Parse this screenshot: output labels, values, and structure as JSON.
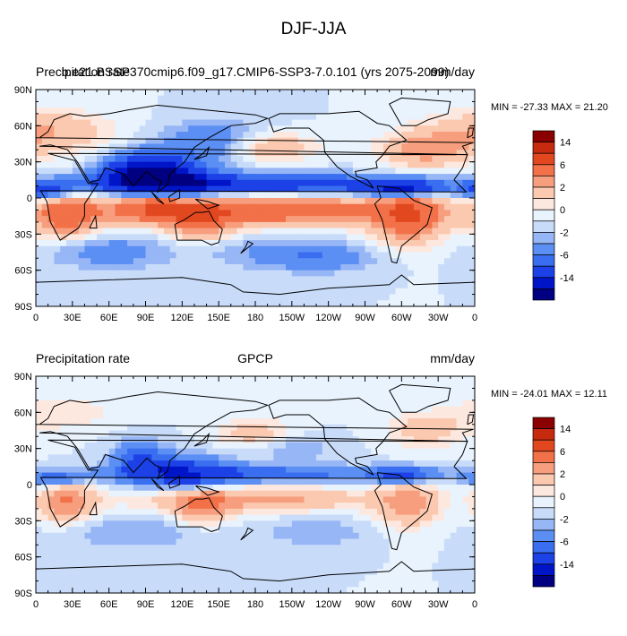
{
  "title": "DJF-JJA",
  "colors": {
    "levels": [
      -14,
      -10,
      -6,
      -4,
      -2,
      -1,
      0,
      1,
      2,
      4,
      6,
      10,
      14
    ],
    "fills": [
      "#000080",
      "#0015c8",
      "#1c41e6",
      "#3a6ef0",
      "#5c8ff3",
      "#97b6f6",
      "#c8dcfa",
      "#e9f3fd",
      "#fde8df",
      "#fbc8b0",
      "#f69e7d",
      "#f27149",
      "#e2481f",
      "#c62a0f",
      "#8b0000"
    ]
  },
  "axes": {
    "lat_ticks": [
      "90N",
      "60N",
      "30N",
      "0",
      "30S",
      "60S",
      "90S"
    ],
    "lon_ticks": [
      "0",
      "30E",
      "60E",
      "90E",
      "120E",
      "150E",
      "180",
      "150W",
      "120W",
      "90W",
      "60W",
      "30W",
      "0"
    ]
  },
  "colorbar_labels": [
    "14",
    "6",
    "2",
    "0",
    "-2",
    "-6",
    "-14"
  ],
  "panels": [
    {
      "left_label": "Precipitation rate",
      "center_label": "b.e21.BSSP370cmip6.f09_g17.CMIP6-SSP3-7.0.101 (yrs 2075-2099)",
      "right_label": "mm/day",
      "minmax": "MIN = -27.33 MAX =  21.20"
    },
    {
      "left_label": "Precipitation rate",
      "center_label": "GPCP",
      "right_label": "mm/day",
      "minmax": "MIN = -24.01 MAX =  12.11"
    }
  ]
}
